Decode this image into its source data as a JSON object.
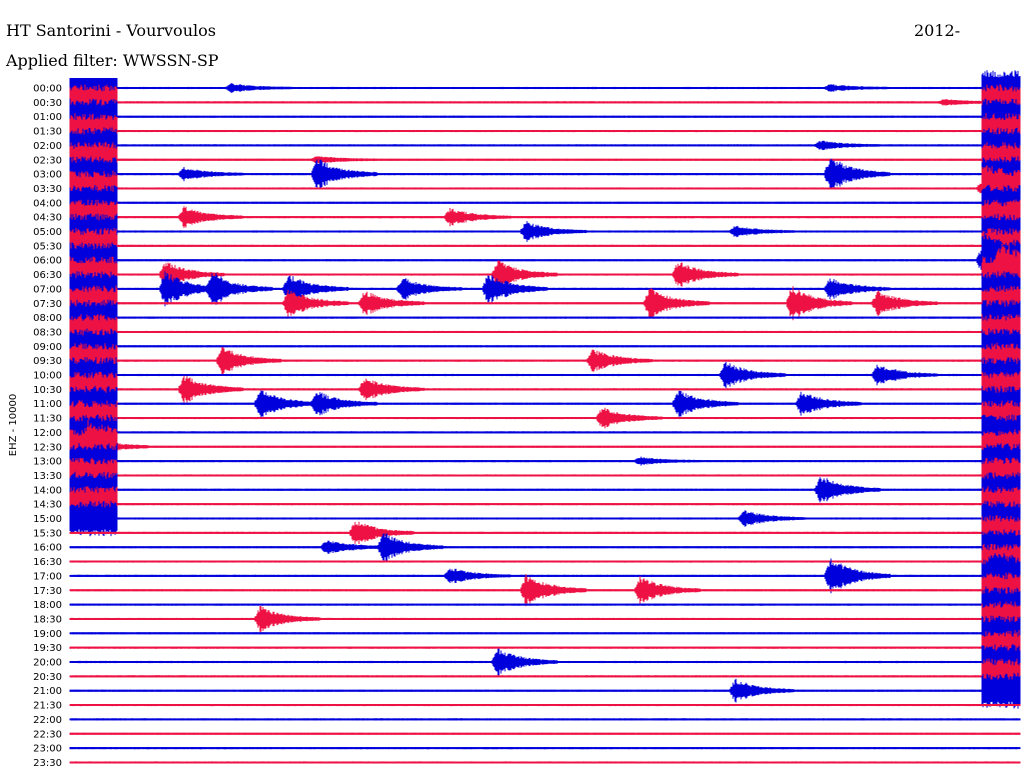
{
  "header": {
    "station": "HT Santorini - Vourvoulos",
    "date": "2012-",
    "filter": "Applied filter: WWSSN-SP"
  },
  "chart_data": {
    "type": "line",
    "title": "HT Santorini - Vourvoulos",
    "subtitle": "Applied filter: WWSSN-SP",
    "ylabel": "EHZ - 10000",
    "colors": [
      "#0000dd",
      "#ee1144"
    ],
    "rows": [
      "00:00",
      "00:30",
      "01:00",
      "01:30",
      "02:00",
      "02:30",
      "03:00",
      "03:30",
      "04:00",
      "04:30",
      "05:00",
      "05:30",
      "06:00",
      "06:30",
      "07:00",
      "07:30",
      "08:00",
      "08:30",
      "09:00",
      "09:30",
      "10:00",
      "10:30",
      "11:00",
      "11:30",
      "12:00",
      "12:30",
      "13:00",
      "13:30",
      "14:00",
      "14:30",
      "15:00",
      "15:30",
      "16:00",
      "16:30",
      "17:00",
      "17:30",
      "18:00",
      "18:30",
      "19:00",
      "19:30",
      "20:00",
      "20:30",
      "21:00",
      "21:30",
      "22:00",
      "22:30",
      "23:00",
      "23:30"
    ],
    "events": [
      {
        "row": 0,
        "x": 0.17,
        "amp": 0.45
      },
      {
        "row": 0,
        "x": 0.8,
        "amp": 0.35
      },
      {
        "row": 1,
        "x": 0.92,
        "amp": 0.3
      },
      {
        "row": 4,
        "x": 0.79,
        "amp": 0.5
      },
      {
        "row": 5,
        "x": 0.26,
        "amp": 0.4
      },
      {
        "row": 6,
        "x": 0.12,
        "amp": 0.7
      },
      {
        "row": 6,
        "x": 0.26,
        "amp": 1.8
      },
      {
        "row": 6,
        "x": 0.8,
        "amp": 2.0
      },
      {
        "row": 7,
        "x": 0.96,
        "amp": 0.8
      },
      {
        "row": 9,
        "x": 0.12,
        "amp": 1.2
      },
      {
        "row": 9,
        "x": 0.4,
        "amp": 1.0
      },
      {
        "row": 10,
        "x": 0.48,
        "amp": 1.1
      },
      {
        "row": 10,
        "x": 0.7,
        "amp": 0.6
      },
      {
        "row": 12,
        "x": 0.96,
        "amp": 1.5
      },
      {
        "row": 13,
        "x": 0.1,
        "amp": 1.5
      },
      {
        "row": 13,
        "x": 0.45,
        "amp": 1.6
      },
      {
        "row": 13,
        "x": 0.64,
        "amp": 1.5
      },
      {
        "row": 13,
        "x": 0.98,
        "amp": 2.0
      },
      {
        "row": 14,
        "x": 0.1,
        "amp": 2.0
      },
      {
        "row": 14,
        "x": 0.15,
        "amp": 1.8
      },
      {
        "row": 14,
        "x": 0.23,
        "amp": 1.6
      },
      {
        "row": 14,
        "x": 0.35,
        "amp": 1.3
      },
      {
        "row": 14,
        "x": 0.44,
        "amp": 1.8
      },
      {
        "row": 14,
        "x": 0.8,
        "amp": 1.3
      },
      {
        "row": 15,
        "x": 0.23,
        "amp": 1.6
      },
      {
        "row": 15,
        "x": 0.31,
        "amp": 1.4
      },
      {
        "row": 15,
        "x": 0.61,
        "amp": 1.7
      },
      {
        "row": 15,
        "x": 0.76,
        "amp": 2.0
      },
      {
        "row": 15,
        "x": 0.85,
        "amp": 1.4
      },
      {
        "row": 19,
        "x": 0.16,
        "amp": 1.6
      },
      {
        "row": 19,
        "x": 0.55,
        "amp": 1.3
      },
      {
        "row": 20,
        "x": 0.69,
        "amp": 1.5
      },
      {
        "row": 20,
        "x": 0.85,
        "amp": 1.2
      },
      {
        "row": 21,
        "x": 0.12,
        "amp": 1.6
      },
      {
        "row": 21,
        "x": 0.31,
        "amp": 1.3
      },
      {
        "row": 22,
        "x": 0.2,
        "amp": 1.6
      },
      {
        "row": 22,
        "x": 0.26,
        "amp": 1.4
      },
      {
        "row": 22,
        "x": 0.64,
        "amp": 1.6
      },
      {
        "row": 22,
        "x": 0.77,
        "amp": 1.4
      },
      {
        "row": 23,
        "x": 0.56,
        "amp": 1.2
      },
      {
        "row": 25,
        "x": 0.02,
        "amp": 1.2
      },
      {
        "row": 26,
        "x": 0.6,
        "amp": 0.4
      },
      {
        "row": 28,
        "x": 0.79,
        "amp": 1.6
      },
      {
        "row": 30,
        "x": 0.71,
        "amp": 0.9
      },
      {
        "row": 31,
        "x": 0.3,
        "amp": 1.4
      },
      {
        "row": 32,
        "x": 0.27,
        "amp": 0.8
      },
      {
        "row": 32,
        "x": 0.33,
        "amp": 1.7
      },
      {
        "row": 34,
        "x": 0.4,
        "amp": 0.9
      },
      {
        "row": 34,
        "x": 0.8,
        "amp": 2.1
      },
      {
        "row": 34,
        "x": 0.97,
        "amp": 1.0
      },
      {
        "row": 35,
        "x": 0.48,
        "amp": 1.8
      },
      {
        "row": 35,
        "x": 0.6,
        "amp": 1.6
      },
      {
        "row": 37,
        "x": 0.2,
        "amp": 1.4
      },
      {
        "row": 40,
        "x": 0.45,
        "amp": 1.5
      },
      {
        "row": 42,
        "x": 0.7,
        "amp": 1.3
      }
    ],
    "saturated_bands": [
      {
        "row_from": 0,
        "row_to": 30,
        "x_from": 0.0,
        "x_to": 0.05
      },
      {
        "row_from": 0,
        "row_to": 42,
        "x_from": 0.96,
        "x_to": 1.0
      }
    ],
    "grid": false
  }
}
